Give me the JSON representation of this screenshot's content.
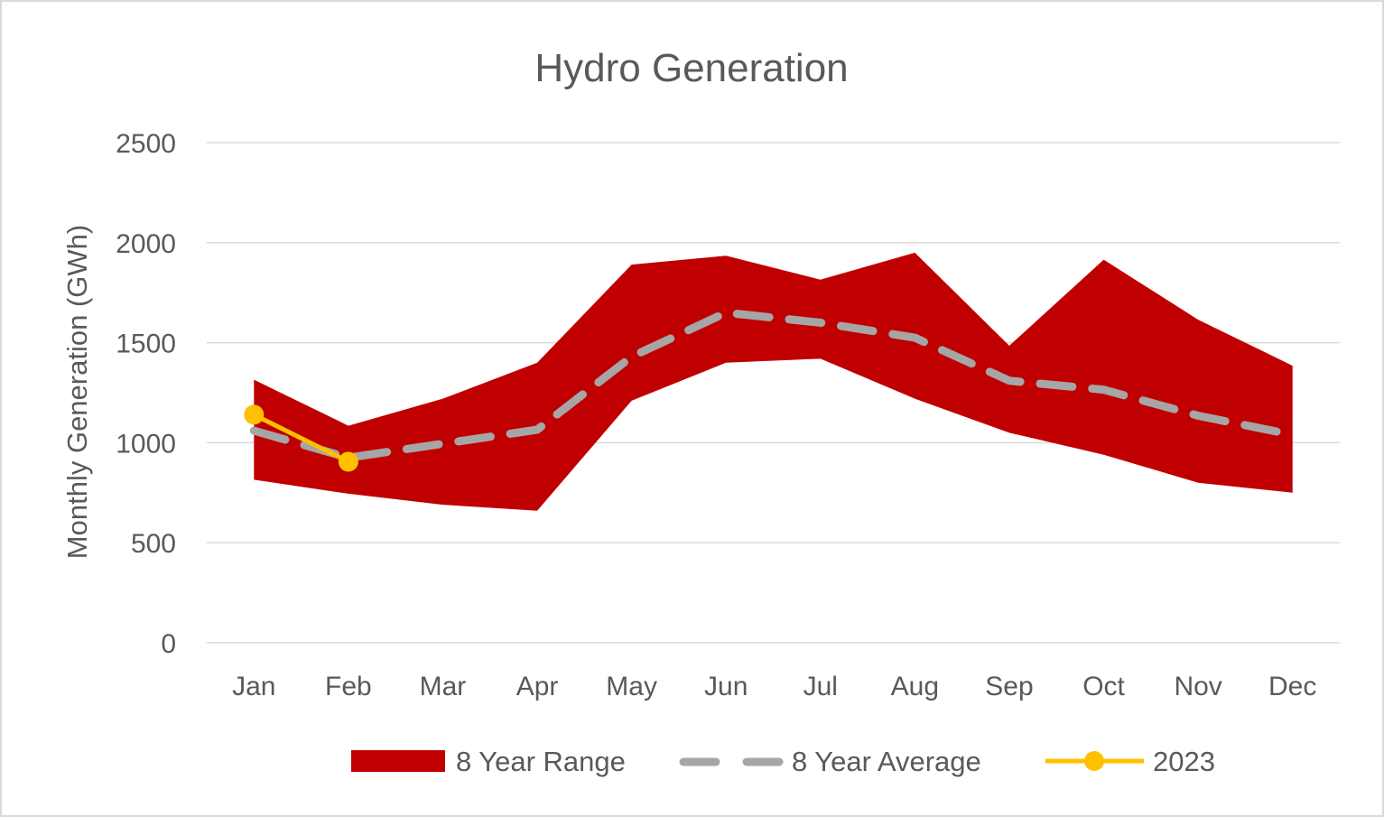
{
  "chart_data": {
    "type": "area",
    "title": "Hydro Generation",
    "xlabel": "",
    "ylabel": "Monthly Generation (GWh)",
    "categories": [
      "Jan",
      "Feb",
      "Mar",
      "Apr",
      "May",
      "Jun",
      "Jul",
      "Aug",
      "Sep",
      "Oct",
      "Nov",
      "Dec"
    ],
    "ylim": [
      0,
      2500
    ],
    "yticks": [
      0,
      500,
      1000,
      1500,
      2000,
      2500
    ],
    "ytick_labels": [
      "0",
      "500",
      "1000",
      "1500",
      "2000",
      "2500"
    ],
    "grid": true,
    "legend_position": "bottom",
    "series": [
      {
        "name": "8 Year Range",
        "kind": "range-band",
        "color": "#c00000",
        "min": [
          815,
          745,
          690,
          660,
          1210,
          1400,
          1420,
          1220,
          1050,
          940,
          800,
          750
        ],
        "max": [
          1315,
          1085,
          1220,
          1400,
          1890,
          1935,
          1815,
          1950,
          1485,
          1915,
          1615,
          1385
        ]
      },
      {
        "name": "8 Year Average",
        "kind": "dashed-line",
        "color": "#a6a6a6",
        "values": [
          1060,
          925,
          995,
          1065,
          1430,
          1650,
          1600,
          1525,
          1310,
          1265,
          1135,
          1040
        ]
      },
      {
        "name": "2023",
        "kind": "line-markers",
        "color": "#ffc000",
        "values": [
          1140,
          905,
          null,
          null,
          null,
          null,
          null,
          null,
          null,
          null,
          null,
          null
        ]
      }
    ]
  }
}
